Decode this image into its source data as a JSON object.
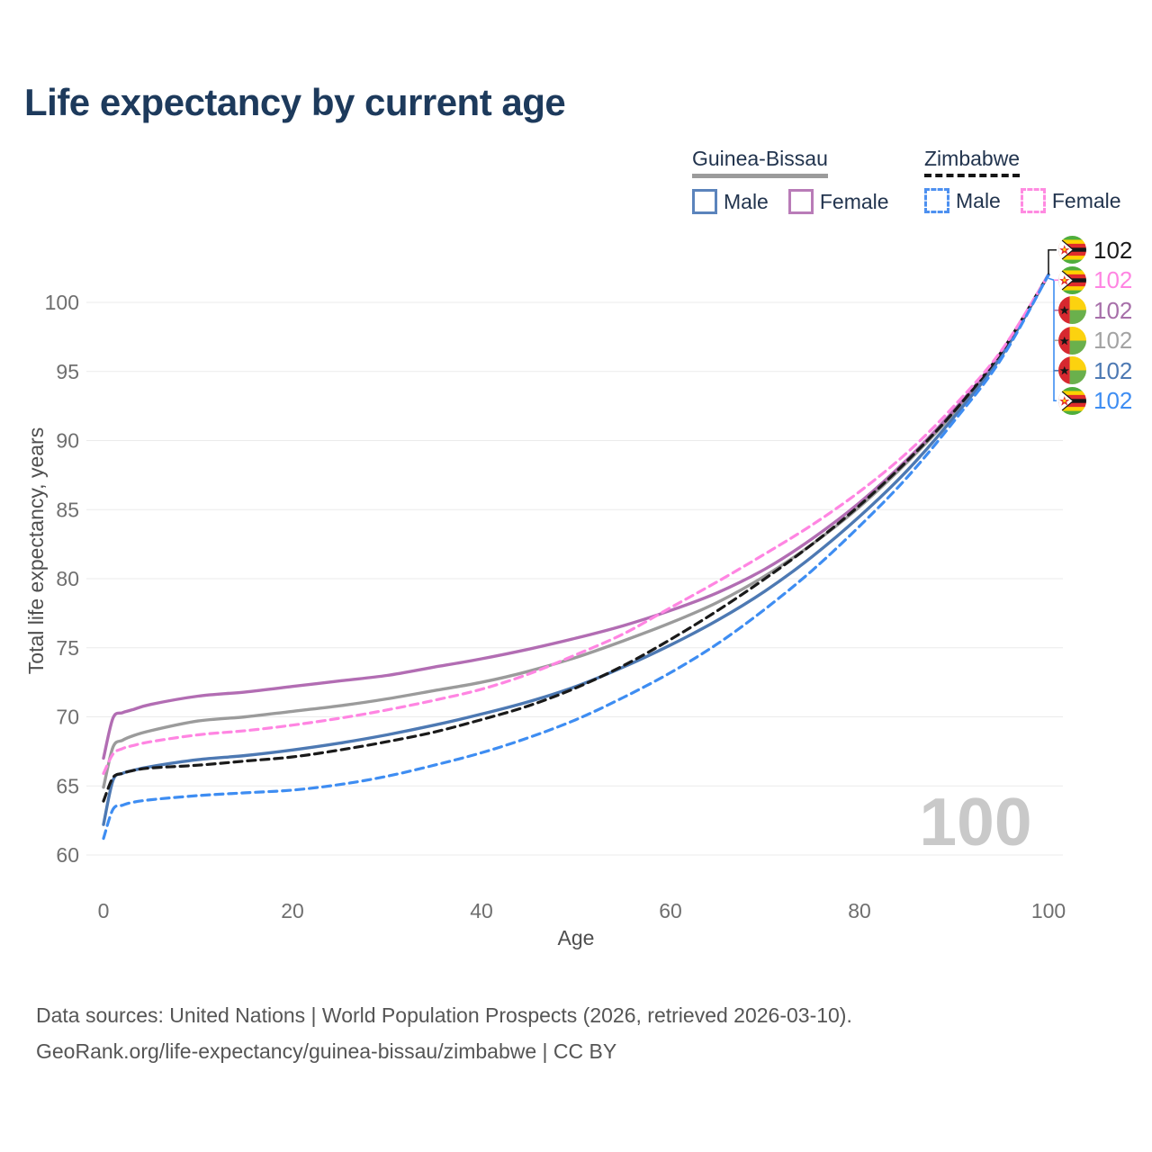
{
  "title": "Life expectancy by current age",
  "legend": {
    "groups": [
      {
        "label": "Guinea-Bissau",
        "line_style": "solid",
        "underline_color": "#9b9b9b",
        "items": [
          {
            "label": "Male",
            "color": "#5b84bc",
            "dashed": false
          },
          {
            "label": "Female",
            "color": "#b97cb8",
            "dashed": false
          }
        ]
      },
      {
        "label": "Zimbabwe",
        "line_style": "dashed",
        "underline_color": "#161616",
        "items": [
          {
            "label": "Male",
            "color": "#4d90f0",
            "dashed": true
          },
          {
            "label": "Female",
            "color": "#ff8ae1",
            "dashed": true
          }
        ]
      }
    ]
  },
  "chart_data": {
    "type": "line",
    "title": "Life expectancy by current age",
    "xlabel": "Age",
    "ylabel": "Total life expectancy, years",
    "xlim": [
      0,
      100
    ],
    "ylim": [
      60,
      103
    ],
    "x_ticks": [
      0,
      20,
      40,
      60,
      80,
      100
    ],
    "y_ticks": [
      60,
      65,
      70,
      75,
      80,
      85,
      90,
      95,
      100
    ],
    "grid": true,
    "legend_position": "top-right",
    "x": [
      0,
      1,
      2,
      3,
      5,
      10,
      15,
      20,
      25,
      30,
      35,
      40,
      45,
      50,
      55,
      60,
      65,
      70,
      75,
      80,
      85,
      90,
      95,
      100
    ],
    "series": [
      {
        "name": "Guinea-Bissau Total",
        "country": "guinea-bissau",
        "sex": "total",
        "color": "#9b9b9b",
        "dashed": false,
        "values": [
          64.9,
          67.8,
          68.3,
          68.6,
          69.0,
          69.7,
          70.0,
          70.4,
          70.8,
          71.3,
          71.9,
          72.5,
          73.3,
          74.3,
          75.5,
          76.8,
          78.3,
          80.2,
          82.5,
          85.2,
          88.4,
          92.0,
          96.3,
          102
        ]
      },
      {
        "name": "Guinea-Bissau Female",
        "country": "guinea-bissau",
        "sex": "female",
        "color": "#b26db3",
        "dashed": false,
        "values": [
          67.0,
          69.9,
          70.3,
          70.5,
          70.9,
          71.5,
          71.8,
          72.2,
          72.6,
          73.0,
          73.6,
          74.2,
          74.9,
          75.7,
          76.6,
          77.7,
          79.0,
          80.7,
          82.9,
          85.5,
          88.6,
          92.2,
          96.4,
          102
        ]
      },
      {
        "name": "Guinea-Bissau Male",
        "country": "guinea-bissau",
        "sex": "male",
        "color": "#4d79b3",
        "dashed": false,
        "values": [
          62.2,
          65.4,
          65.9,
          66.1,
          66.4,
          66.9,
          67.2,
          67.6,
          68.1,
          68.7,
          69.4,
          70.2,
          71.1,
          72.2,
          73.6,
          75.2,
          77.0,
          79.1,
          81.6,
          84.5,
          87.8,
          91.7,
          96.1,
          102
        ]
      },
      {
        "name": "Zimbabwe Total",
        "country": "zimbabwe",
        "sex": "total",
        "color": "#1a1a1a",
        "dashed": true,
        "values": [
          63.9,
          65.6,
          65.9,
          66.1,
          66.3,
          66.5,
          66.8,
          67.1,
          67.6,
          68.2,
          68.9,
          69.8,
          70.8,
          72.1,
          73.7,
          75.6,
          77.7,
          80.0,
          82.5,
          85.3,
          88.5,
          92.1,
          96.4,
          102
        ]
      },
      {
        "name": "Zimbabwe Female",
        "country": "zimbabwe",
        "sex": "female",
        "color": "#ff85e2",
        "dashed": true,
        "values": [
          65.9,
          67.3,
          67.7,
          67.9,
          68.2,
          68.7,
          69.0,
          69.4,
          69.9,
          70.5,
          71.2,
          72.0,
          73.1,
          74.5,
          76.0,
          77.9,
          79.8,
          81.8,
          83.9,
          86.3,
          89.1,
          92.5,
          96.5,
          102
        ]
      },
      {
        "name": "Zimbabwe Male",
        "country": "zimbabwe",
        "sex": "male",
        "color": "#3e8df2",
        "dashed": true,
        "values": [
          61.2,
          63.3,
          63.6,
          63.8,
          64.0,
          64.3,
          64.5,
          64.7,
          65.1,
          65.7,
          66.5,
          67.4,
          68.5,
          69.8,
          71.4,
          73.2,
          75.3,
          77.8,
          80.6,
          83.8,
          87.3,
          91.4,
          95.9,
          102
        ]
      }
    ],
    "end_labels": [
      {
        "flag": "zimbabwe",
        "value": "102",
        "color": "#1a1a1a"
      },
      {
        "flag": "zimbabwe",
        "value": "102",
        "color": "#ff85e2"
      },
      {
        "flag": "guinea-bissau",
        "value": "102",
        "color": "#a76fa9"
      },
      {
        "flag": "guinea-bissau",
        "value": "102",
        "color": "#a3a3a3"
      },
      {
        "flag": "guinea-bissau",
        "value": "102",
        "color": "#4d79b3"
      },
      {
        "flag": "zimbabwe",
        "value": "102",
        "color": "#3e8df2"
      }
    ],
    "hover_age_indicator": "100"
  },
  "watermark": "100",
  "footer": {
    "line1": "Data sources: United Nations | World Population Prospects (2026, retrieved 2026-03-10).",
    "line2": "GeoRank.org/life-expectancy/guinea-bissau/zimbabwe | CC BY"
  }
}
